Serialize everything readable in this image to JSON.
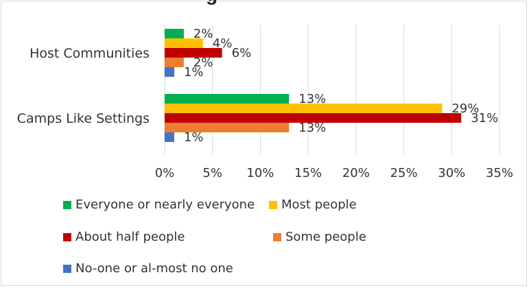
{
  "chart_data": {
    "type": "bar",
    "orientation": "horizontal",
    "title_fragment": "g",
    "categories": [
      "Host Communities",
      "Camps Like Settings"
    ],
    "series": [
      {
        "name": "Everyone or nearly everyone",
        "color": "#00b050",
        "values": [
          2,
          13
        ],
        "labels": [
          "2%",
          "13%"
        ]
      },
      {
        "name": "Most people",
        "color": "#ffc000",
        "values": [
          4,
          29
        ],
        "labels": [
          "4%",
          "29%"
        ]
      },
      {
        "name": "About half people",
        "color": "#c00000",
        "values": [
          6,
          31
        ],
        "labels": [
          "6%",
          "31%"
        ]
      },
      {
        "name": "Some people",
        "color": "#ed7d31",
        "values": [
          2,
          13
        ],
        "labels": [
          "2%",
          "13%"
        ]
      },
      {
        "name": "No-one or al-most no one",
        "color": "#4472c4",
        "values": [
          1,
          1
        ],
        "labels": [
          "1%",
          "1%"
        ]
      }
    ],
    "x_ticks": [
      "0%",
      "5%",
      "10%",
      "15%",
      "20%",
      "25%",
      "30%",
      "35%"
    ],
    "xlim": [
      0,
      35
    ],
    "grid": true,
    "legend_position": "bottom"
  }
}
